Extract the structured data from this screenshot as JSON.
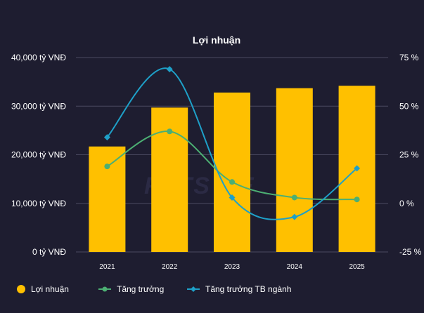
{
  "chart_data": {
    "type": "bar",
    "title": "Lợi nhuận",
    "categories": [
      "2021",
      "2022",
      "2023",
      "2024",
      "2025"
    ],
    "series": [
      {
        "name": "Lợi nhuận",
        "kind": "bar",
        "axis": "left",
        "color": "#ffc000",
        "values": [
          21700,
          29700,
          32800,
          33700,
          34200
        ]
      },
      {
        "name": "Tăng trưởng",
        "kind": "line",
        "axis": "right",
        "color": "#4caf73",
        "values": [
          19,
          37,
          11,
          3,
          2
        ]
      },
      {
        "name": "Tăng trưởng TB ngành",
        "kind": "line",
        "axis": "right",
        "color": "#1ea0c8",
        "values": [
          34,
          69,
          3,
          -7,
          18
        ]
      }
    ],
    "y_left": {
      "min": 0,
      "max": 40000,
      "ticks": [
        "0 tỷ VNĐ",
        "10,000 tỷ VNĐ",
        "20,000 tỷ VNĐ",
        "30,000 tỷ VNĐ",
        "40,000 tỷ VNĐ"
      ]
    },
    "y_right": {
      "min": -25,
      "max": 75,
      "ticks": [
        "-25 %",
        "0 %",
        "25 %",
        "50 %",
        "75 %"
      ]
    },
    "grid": true,
    "legend": "bottom-left"
  }
}
